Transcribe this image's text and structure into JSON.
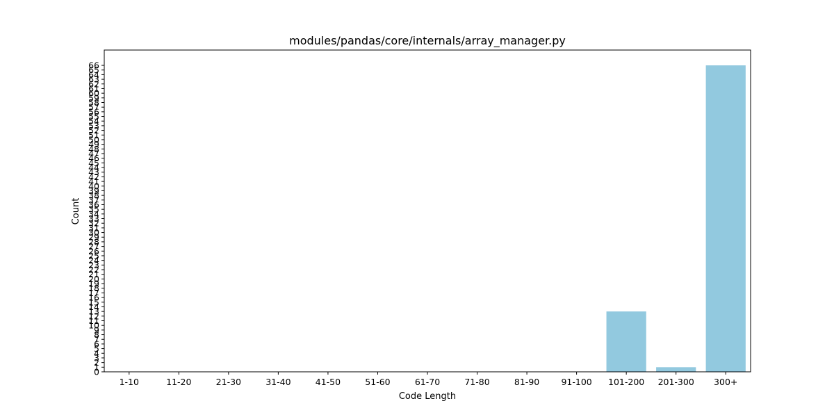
{
  "chart_data": {
    "type": "bar",
    "title": "modules/pandas/core/internals/array_manager.py",
    "xlabel": "Code Length",
    "ylabel": "Count",
    "categories": [
      "1-10",
      "11-20",
      "21-30",
      "31-40",
      "41-50",
      "51-60",
      "61-70",
      "71-80",
      "81-90",
      "91-100",
      "101-200",
      "201-300",
      "300+"
    ],
    "values": [
      0,
      0,
      0,
      0,
      0,
      0,
      0,
      0,
      0,
      0,
      13,
      1,
      66
    ],
    "ylim": [
      0,
      69.3
    ],
    "yticks_max": 66,
    "bar_color": "#92c9df",
    "grid": false,
    "legend": "none"
  }
}
